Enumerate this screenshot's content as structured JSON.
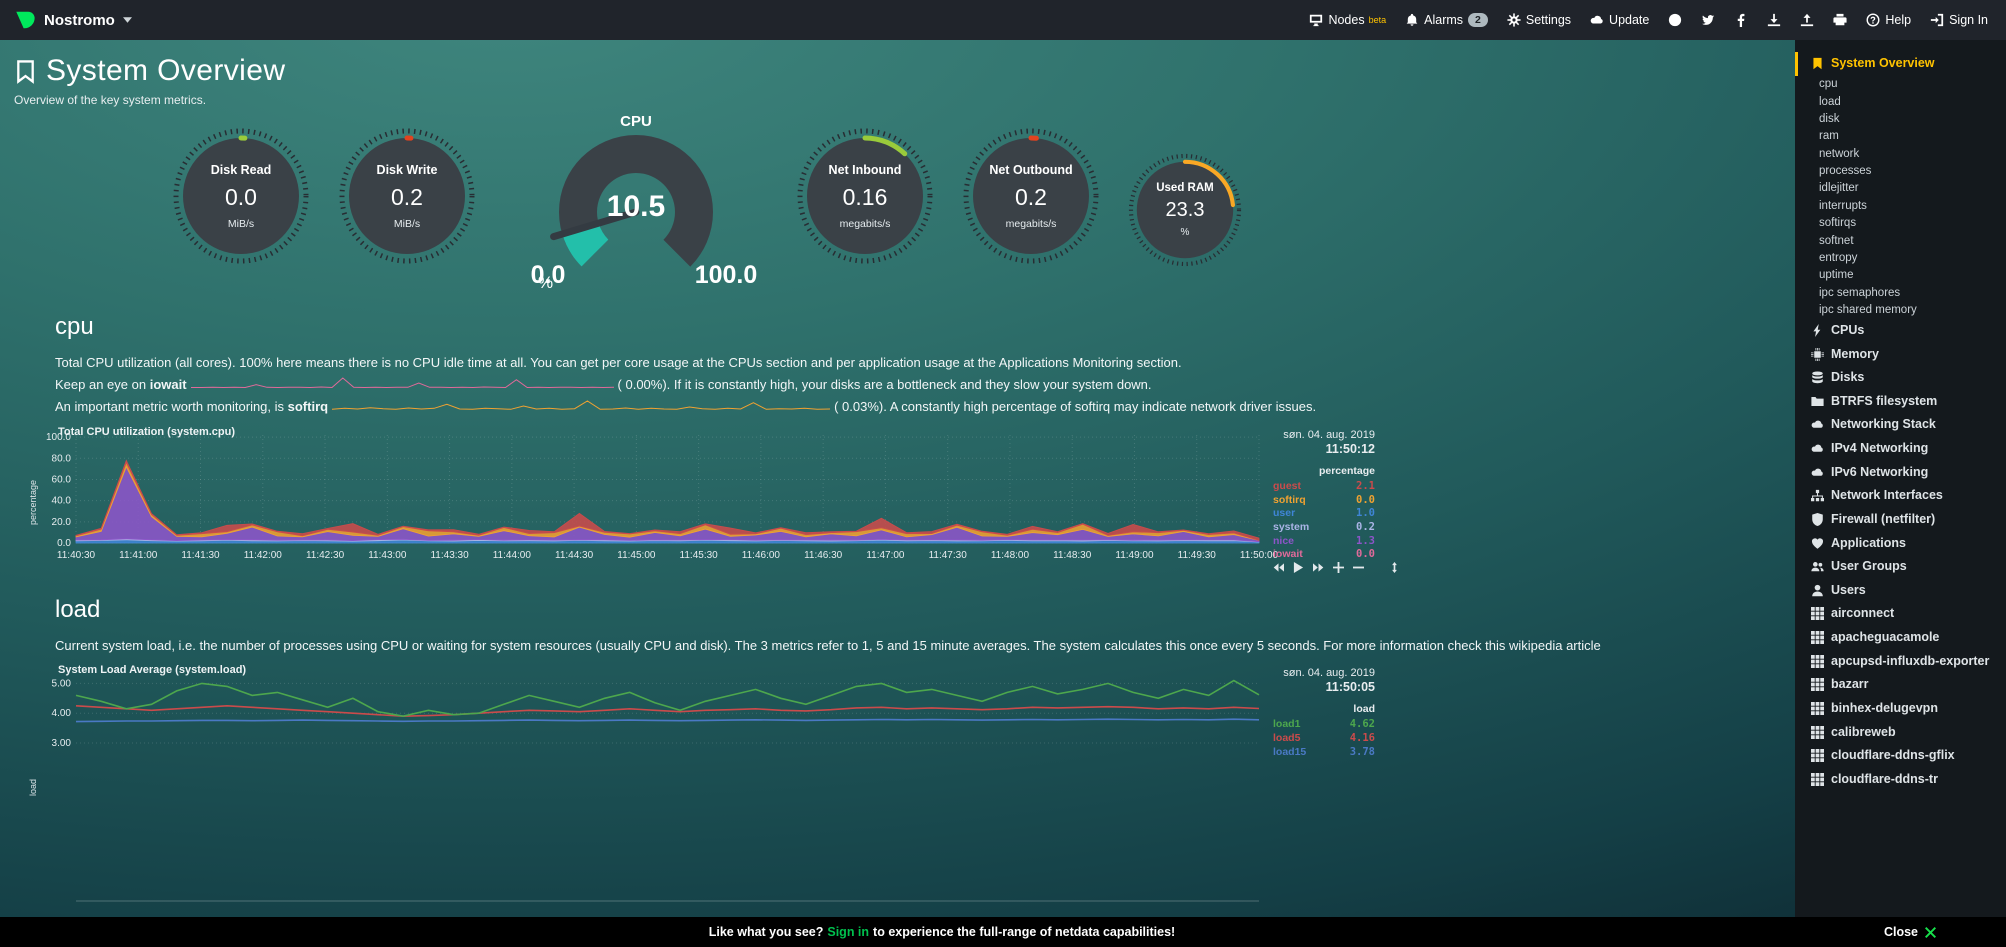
{
  "topbar": {
    "brand": "Nostromo",
    "items": [
      {
        "icon": "monitor-icon",
        "label": "Nodes",
        "sup": "beta"
      },
      {
        "icon": "bell-icon",
        "label": "Alarms",
        "badge": "2"
      },
      {
        "icon": "gear-icon",
        "label": "Settings"
      },
      {
        "icon": "cloud-icon",
        "label": "Update"
      },
      {
        "icon": "github-icon"
      },
      {
        "icon": "twitter-icon"
      },
      {
        "icon": "facebook-icon"
      },
      {
        "icon": "download-icon"
      },
      {
        "icon": "upload-icon"
      },
      {
        "icon": "print-icon"
      },
      {
        "icon": "help-icon",
        "label": "Help"
      },
      {
        "icon": "signin-icon",
        "label": "Sign In"
      }
    ]
  },
  "header": {
    "title": "System Overview",
    "subtitle": "Overview of the key system metrics."
  },
  "gauges": {
    "disk_read": {
      "label": "Disk Read",
      "value": "0.0",
      "unit": "MiB/s",
      "percent": 0.5,
      "color": "#9acb3b"
    },
    "disk_write": {
      "label": "Disk Write",
      "value": "0.2",
      "unit": "MiB/s",
      "percent": 1,
      "color": "#e2431f"
    },
    "net_inbound": {
      "label": "Net Inbound",
      "value": "0.16",
      "unit": "megabits/s",
      "percent": 12,
      "color": "#9acb3b"
    },
    "net_outbound": {
      "label": "Net Outbound",
      "value": "0.2",
      "unit": "megabits/s",
      "percent": 1.5,
      "color": "#e2431f"
    },
    "used_ram": {
      "label": "Used RAM",
      "value": "23.3",
      "unit": "%",
      "percent": 23.3,
      "color": "#f9a825"
    }
  },
  "cpu_gauge": {
    "title": "CPU",
    "value": "10.5",
    "min": "0.0",
    "max": "100.0",
    "unit": "%",
    "percent": 10.5,
    "color": "#23bfaa"
  },
  "cpu_section": {
    "heading": "cpu",
    "p1": "Total CPU utilization (all cores). 100% here means there is no CPU idle time at all. You can get per core usage at the CPUs section and per application usage at the Applications Monitoring section.",
    "p2_pre": "Keep an eye on ",
    "p2_term": "iowait",
    "p2_value": "( 0.00%).",
    "p2_post": " If it is constantly high, your disks are a bottleneck and they slow your system down.",
    "p3_pre": "An important metric worth monitoring, is ",
    "p3_term": "softirq",
    "p3_value": "( 0.03%).",
    "p3_post": " A constantly high percentage of softirq may indicate network driver issues.",
    "sparklines": {
      "iowait": {
        "color": "#e06a9a",
        "values": [
          0.3,
          0.3,
          0.5,
          0.3,
          0.4,
          0.3,
          2,
          0.4,
          0.3,
          0.5,
          0.4,
          0.3,
          0.6,
          0.3,
          6,
          0.5,
          0.3,
          0.4,
          0.3,
          0.5,
          0.4,
          3,
          0.4,
          0.5,
          0.3,
          0.4,
          0.3,
          0.6,
          0.4,
          0.3,
          5,
          0.3,
          0.4,
          0.3,
          0.5,
          0.4,
          0.3,
          0.4,
          0.3,
          0.4
        ]
      },
      "softirq": {
        "color": "#f0a231",
        "values": [
          0.5,
          0.8,
          0.6,
          1,
          0.7,
          0.5,
          0.9,
          0.6,
          0.8,
          2,
          0.6,
          0.5,
          0.8,
          0.7,
          0.5,
          1.5,
          0.6,
          0.8,
          0.5,
          0.7,
          3,
          0.5,
          0.6,
          0.9,
          0.5,
          0.8,
          0.6,
          0.5,
          1.2,
          0.7,
          0.5,
          0.8,
          0.6,
          2.5,
          0.5,
          0.7,
          0.6,
          0.8,
          0.5,
          0.6
        ]
      }
    }
  },
  "load_section": {
    "heading": "load",
    "p1": "Current system load, i.e. the number of processes using CPU or waiting for system resources (usually CPU and disk). The 3 metrics refer to 1, 5 and 15 minute averages. The system calculates this once every 5 seconds. For more information check this wikipedia article"
  },
  "chart_data": [
    {
      "type": "stacked",
      "title": "Total CPU utilization (system.cpu)",
      "date": "søn. 04. aug. 2019",
      "time": "11:50:12",
      "units": "percentage",
      "ylabel": "percentage",
      "ymin": 0,
      "ymax": 102,
      "y_ticks": [
        {
          "v": 100,
          "label": "100.0"
        },
        {
          "v": 80,
          "label": "80.0"
        },
        {
          "v": 60,
          "label": "60.0"
        },
        {
          "v": 40,
          "label": "40.0"
        },
        {
          "v": 20,
          "label": "20.0"
        },
        {
          "v": 0,
          "label": "0.0"
        }
      ],
      "x_ticks": [
        "11:40:30",
        "11:41:00",
        "11:41:30",
        "11:42:00",
        "11:42:30",
        "11:43:00",
        "11:43:30",
        "11:44:00",
        "11:44:30",
        "11:45:00",
        "11:45:30",
        "11:46:00",
        "11:46:30",
        "11:47:00",
        "11:47:30",
        "11:48:00",
        "11:48:30",
        "11:49:00",
        "11:49:30",
        "11:50:00"
      ],
      "legend": [
        {
          "name": "guest",
          "value": "2.1",
          "color": "#cb4b4b"
        },
        {
          "name": "softirq",
          "value": "0.0",
          "color": "#f0a231"
        },
        {
          "name": "user",
          "value": "1.0",
          "color": "#3f85d6"
        },
        {
          "name": "system",
          "value": "0.2",
          "color": "#aab4e6"
        },
        {
          "name": "nice",
          "value": "1.3",
          "color": "#8d55c9"
        },
        {
          "name": "iowait",
          "value": "0.0",
          "color": "#e06a9a"
        }
      ],
      "series": [
        {
          "name": "user",
          "color": "#3f85d6",
          "values": [
            2,
            2.4,
            3,
            2.2,
            1.8,
            2,
            2.6,
            2.1,
            1.9,
            2.3,
            2,
            1.7,
            2.2,
            2.8,
            2,
            1.8,
            2.4,
            2,
            2.2,
            1.9,
            2.5,
            2.1,
            1.8,
            2.3,
            2,
            2.6,
            2.2,
            1.9,
            2.4,
            2,
            1.8,
            2.2,
            2.7,
            2,
            2.3,
            1.9,
            2.1,
            2.5,
            2,
            2.2,
            1.8,
            2.4,
            2.1,
            1.9,
            2.3,
            2,
            2.2,
            1
          ]
        },
        {
          "name": "system",
          "color": "#aab4e6",
          "values": [
            0.8,
            0.6,
            1,
            0.7,
            0.5,
            0.8,
            0.6,
            0.9,
            0.7,
            0.5,
            0.8,
            0.6,
            1,
            0.7,
            0.5,
            0.8,
            0.9,
            0.6,
            0.7,
            0.8,
            0.5,
            0.9,
            0.7,
            0.6,
            0.8,
            0.5,
            1,
            0.7,
            0.6,
            0.8,
            0.9,
            0.5,
            0.7,
            0.8,
            0.6,
            0.9,
            0.5,
            0.7,
            0.8,
            0.6,
            1,
            0.7,
            0.5,
            0.8,
            0.6,
            0.9,
            0.7,
            0.2
          ]
        },
        {
          "name": "nice",
          "color": "#8d55c9",
          "values": [
            3,
            8,
            68,
            22,
            4,
            3,
            6,
            12,
            4,
            3,
            8,
            5,
            3,
            10,
            4,
            6,
            3,
            9,
            4,
            3,
            12,
            5,
            3,
            7,
            4,
            10,
            3,
            5,
            8,
            3,
            6,
            4,
            9,
            3,
            5,
            12,
            4,
            3,
            7,
            5,
            10,
            3,
            6,
            4,
            8,
            3,
            5,
            1.3
          ]
        },
        {
          "name": "softirq",
          "color": "#f0a231",
          "values": [
            1,
            2,
            4,
            2,
            1,
            3,
            1.5,
            2,
            4,
            1,
            2,
            3,
            1,
            2,
            5,
            2,
            1,
            3,
            2,
            4,
            1,
            2,
            3,
            1.5,
            2,
            4,
            2,
            1,
            3,
            2,
            1,
            4,
            2,
            3,
            1,
            2,
            4,
            1,
            3,
            2,
            5,
            1,
            2,
            3,
            1,
            2,
            1.5,
            0
          ]
        },
        {
          "name": "guest",
          "color": "#cb4b4b",
          "values": [
            0.5,
            1,
            2,
            1,
            0.5,
            1,
            6,
            1,
            0.5,
            2,
            1,
            8,
            1,
            0.5,
            1,
            2,
            1,
            0.5,
            3,
            1,
            12,
            1,
            0.5,
            1,
            2,
            1,
            6,
            1,
            0.5,
            2,
            1,
            0.5,
            9,
            1,
            2,
            1,
            0.5,
            1,
            3,
            1,
            0.5,
            2,
            7,
            1,
            0.5,
            1,
            2,
            2.1
          ]
        }
      ]
    },
    {
      "type": "line",
      "title": "System Load Average (system.load)",
      "date": "søn. 04. aug. 2019",
      "time": "11:50:05",
      "units": "load",
      "ylabel": "load",
      "ymin": -2.3,
      "ymax": 5.35,
      "y_ticks": [
        {
          "v": 5,
          "label": "5.00"
        },
        {
          "v": 4,
          "label": "4.00"
        },
        {
          "v": 3,
          "label": "3.00"
        }
      ],
      "x_ticks": [],
      "legend": [
        {
          "name": "load1",
          "value": "4.62",
          "color": "#4da74d"
        },
        {
          "name": "load5",
          "value": "4.16",
          "color": "#cb4b4b"
        },
        {
          "name": "load15",
          "value": "3.78",
          "color": "#4a79c4"
        }
      ],
      "series": [
        {
          "name": "load15",
          "color": "#4a79c4",
          "values": [
            3.72,
            3.73,
            3.74,
            3.74,
            3.75,
            3.76,
            3.76,
            3.75,
            3.76,
            3.77,
            3.76,
            3.75,
            3.74,
            3.73,
            3.74,
            3.74,
            3.75,
            3.76,
            3.77,
            3.76,
            3.75,
            3.76,
            3.77,
            3.76,
            3.75,
            3.76,
            3.77,
            3.78,
            3.77,
            3.76,
            3.77,
            3.78,
            3.79,
            3.78,
            3.79,
            3.78,
            3.77,
            3.78,
            3.79,
            3.78,
            3.79,
            3.8,
            3.79,
            3.78,
            3.79,
            3.78,
            3.8,
            3.78
          ]
        },
        {
          "name": "load5",
          "color": "#cb4b4b",
          "values": [
            4.25,
            4.2,
            4.15,
            4.1,
            4.15,
            4.2,
            4.25,
            4.2,
            4.15,
            4.1,
            4.05,
            4,
            3.95,
            3.9,
            3.92,
            3.95,
            4,
            4.05,
            4.1,
            4.08,
            4.05,
            4.1,
            4.15,
            4.1,
            4.05,
            4.1,
            4.12,
            4.15,
            4.1,
            4.08,
            4.12,
            4.18,
            4.2,
            4.15,
            4.18,
            4.15,
            4.12,
            4.15,
            4.2,
            4.18,
            4.2,
            4.22,
            4.2,
            4.15,
            4.18,
            4.15,
            4.2,
            4.16
          ]
        },
        {
          "name": "load1",
          "color": "#4da74d",
          "values": [
            4.6,
            4.4,
            4.15,
            4.3,
            4.75,
            5,
            4.9,
            4.6,
            4.7,
            4.45,
            4.2,
            4.5,
            4.05,
            3.9,
            4.1,
            3.95,
            4,
            4.3,
            4.6,
            4.4,
            4.2,
            4.5,
            4.7,
            4.35,
            4.1,
            4.4,
            4.6,
            4.8,
            4.5,
            4.3,
            4.6,
            4.9,
            5,
            4.7,
            4.8,
            4.6,
            4.4,
            4.7,
            4.9,
            4.65,
            4.8,
            5,
            4.7,
            4.5,
            4.8,
            4.6,
            5.1,
            4.62
          ]
        }
      ]
    }
  ],
  "sidebar": {
    "items": [
      {
        "icon": "bookmark-icon",
        "label": "System Overview",
        "active": true
      },
      {
        "label": "cpu",
        "sub": true
      },
      {
        "label": "load",
        "sub": true
      },
      {
        "label": "disk",
        "sub": true
      },
      {
        "label": "ram",
        "sub": true
      },
      {
        "label": "network",
        "sub": true
      },
      {
        "label": "processes",
        "sub": true
      },
      {
        "label": "idlejitter",
        "sub": true
      },
      {
        "label": "interrupts",
        "sub": true
      },
      {
        "label": "softirqs",
        "sub": true
      },
      {
        "label": "softnet",
        "sub": true
      },
      {
        "label": "entropy",
        "sub": true
      },
      {
        "label": "uptime",
        "sub": true
      },
      {
        "label": "ipc semaphores",
        "sub": true
      },
      {
        "label": "ipc shared memory",
        "sub": true
      },
      {
        "icon": "bolt-icon",
        "label": "CPUs"
      },
      {
        "icon": "chip-icon",
        "label": "Memory"
      },
      {
        "icon": "disks-icon",
        "label": "Disks"
      },
      {
        "icon": "folder-icon",
        "label": "BTRFS filesystem"
      },
      {
        "icon": "cloud-icon",
        "label": "Networking Stack"
      },
      {
        "icon": "cloud-icon",
        "label": "IPv4 Networking"
      },
      {
        "icon": "cloud-icon",
        "label": "IPv6 Networking"
      },
      {
        "icon": "sitemap-icon",
        "label": "Network Interfaces"
      },
      {
        "icon": "shield-icon",
        "label": "Firewall (netfilter)"
      },
      {
        "icon": "heart-icon",
        "label": "Applications"
      },
      {
        "icon": "users-icon",
        "label": "User Groups"
      },
      {
        "icon": "user-icon",
        "label": "Users"
      },
      {
        "icon": "grid-icon",
        "label": "airconnect"
      },
      {
        "icon": "grid-icon",
        "label": "apacheguacamole"
      },
      {
        "icon": "grid-icon",
        "label": "apcupsd-influxdb-exporter"
      },
      {
        "icon": "grid-icon",
        "label": "bazarr"
      },
      {
        "icon": "grid-icon",
        "label": "binhex-delugevpn"
      },
      {
        "icon": "grid-icon",
        "label": "calibreweb"
      },
      {
        "icon": "grid-icon",
        "label": "cloudflare-ddns-gflix"
      },
      {
        "icon": "grid-icon",
        "label": "cloudflare-ddns-tr"
      }
    ]
  },
  "footer": {
    "message_pre": "Like what you see?",
    "signin": "Sign in",
    "message_post": "to experience the full-range of netdata capabilities!",
    "close": "Close"
  },
  "colors": {
    "accent_yellow": "#ffc300",
    "netdata_green": "#00ab44"
  }
}
